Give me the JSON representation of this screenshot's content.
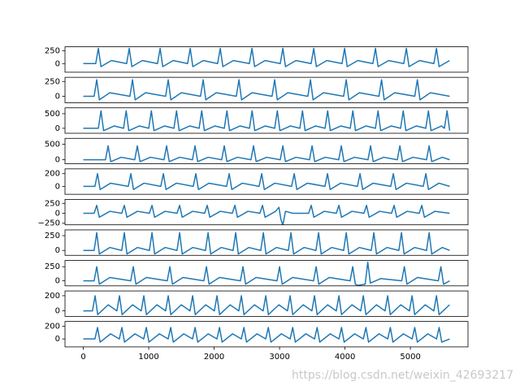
{
  "chart_data": [
    {
      "type": "line",
      "color": "#1f77b4",
      "xlim": [
        -280,
        5880
      ],
      "ylim": [
        -170,
        330
      ],
      "yticks": [
        0,
        250
      ],
      "x": [
        0,
        190,
        230,
        270,
        430,
        662,
        702,
        742,
        902,
        1134,
        1174,
        1214,
        1374,
        1594,
        1634,
        1674,
        1834,
        2053,
        2093,
        2133,
        2293,
        2538,
        2578,
        2618,
        2778,
        3010,
        3050,
        3090,
        3250,
        3482,
        3522,
        3562,
        3722,
        3954,
        3994,
        4034,
        4194,
        4426,
        4466,
        4506,
        4666,
        4898,
        4938,
        4978,
        5138,
        5358,
        5398,
        5438,
        5598
      ],
      "values": [
        0,
        0,
        300,
        -60,
        60,
        0,
        300,
        -60,
        60,
        0,
        300,
        -60,
        60,
        0,
        300,
        -60,
        60,
        0,
        300,
        -60,
        60,
        0,
        300,
        -60,
        60,
        0,
        300,
        -60,
        60,
        0,
        300,
        -60,
        60,
        0,
        300,
        -60,
        60,
        0,
        300,
        -60,
        60,
        0,
        300,
        -60,
        60,
        0,
        300,
        -60,
        60
      ]
    },
    {
      "type": "line",
      "color": "#1f77b4",
      "xlim": [
        -280,
        5880
      ],
      "ylim": [
        -110,
        320
      ],
      "yticks": [
        0,
        250
      ],
      "x": [
        0,
        165,
        205,
        245,
        405,
        712,
        752,
        792,
        952,
        1258,
        1298,
        1338,
        1498,
        1792,
        1832,
        1872,
        2032,
        2339,
        2379,
        2419,
        2579,
        2885,
        2925,
        2965,
        3125,
        3432,
        3472,
        3512,
        3672,
        3979,
        4019,
        4059,
        4219,
        4519,
        4559,
        4599,
        4759,
        5066,
        5106,
        5146,
        5306,
        5600
      ],
      "values": [
        0,
        0,
        280,
        -60,
        60,
        0,
        280,
        -60,
        60,
        0,
        280,
        -60,
        60,
        0,
        280,
        -60,
        60,
        0,
        280,
        -60,
        60,
        0,
        280,
        -60,
        60,
        0,
        280,
        -60,
        60,
        0,
        280,
        -60,
        60,
        0,
        280,
        -60,
        60,
        0,
        280,
        -60,
        60,
        0
      ]
    },
    {
      "type": "line",
      "color": "#1f77b4",
      "xlim": [
        -280,
        5880
      ],
      "ylim": [
        -170,
        700
      ],
      "yticks": [
        0,
        500
      ],
      "x": [
        0,
        230,
        270,
        310,
        470,
        615,
        655,
        695,
        855,
        1000,
        1040,
        1080,
        1240,
        1385,
        1425,
        1465,
        1625,
        1770,
        1810,
        1850,
        2010,
        2155,
        2195,
        2235,
        2395,
        2540,
        2580,
        2620,
        2780,
        2925,
        2965,
        3005,
        3165,
        3310,
        3350,
        3390,
        3550,
        3695,
        3735,
        3775,
        3935,
        4080,
        4120,
        4160,
        4320,
        4465,
        4505,
        4545,
        4705,
        4850,
        4890,
        4930,
        5090,
        5235,
        5275,
        5315,
        5475,
        5520,
        5560,
        5600
      ],
      "values": [
        0,
        0,
        600,
        -80,
        80,
        0,
        600,
        -80,
        80,
        0,
        600,
        -80,
        80,
        0,
        600,
        -80,
        80,
        0,
        600,
        -80,
        80,
        0,
        600,
        -80,
        80,
        0,
        600,
        -80,
        80,
        0,
        600,
        -80,
        80,
        0,
        600,
        -80,
        80,
        0,
        600,
        -80,
        80,
        0,
        600,
        -80,
        80,
        0,
        600,
        -80,
        80,
        0,
        600,
        -80,
        80,
        0,
        600,
        -80,
        80,
        0,
        600,
        -80
      ]
    },
    {
      "type": "line",
      "color": "#1f77b4",
      "xlim": [
        -280,
        5880
      ],
      "ylim": [
        -130,
        690
      ],
      "yticks": [
        0,
        500
      ],
      "x": [
        0,
        339,
        379,
        419,
        579,
        786,
        826,
        866,
        1026,
        1233,
        1273,
        1313,
        1473,
        1668,
        1708,
        1748,
        1908,
        2115,
        2155,
        2195,
        2355,
        2562,
        2602,
        2642,
        2802,
        3010,
        3050,
        3090,
        3250,
        3457,
        3497,
        3537,
        3697,
        3904,
        3944,
        3984,
        4144,
        4351,
        4391,
        4431,
        4591,
        4799,
        4839,
        4879,
        5039,
        5246,
        5286,
        5326,
        5486,
        5600
      ],
      "values": [
        0,
        0,
        450,
        -60,
        80,
        0,
        450,
        -60,
        80,
        0,
        450,
        -60,
        80,
        0,
        450,
        -60,
        80,
        0,
        450,
        -60,
        80,
        0,
        450,
        -60,
        80,
        0,
        450,
        -60,
        80,
        0,
        450,
        -60,
        80,
        0,
        450,
        -60,
        80,
        0,
        450,
        -60,
        80,
        0,
        450,
        -60,
        80,
        0,
        450,
        -60,
        80,
        0
      ]
    },
    {
      "type": "line",
      "color": "#1f77b4",
      "xlim": [
        -280,
        5880
      ],
      "ylim": [
        -125,
        275
      ],
      "yticks": [
        0,
        200
      ],
      "x": [
        0,
        177,
        217,
        257,
        417,
        687,
        727,
        767,
        927,
        1184,
        1224,
        1264,
        1424,
        1680,
        1720,
        1760,
        1920,
        2190,
        2230,
        2270,
        2430,
        2687,
        2727,
        2767,
        2927,
        3184,
        3224,
        3264,
        3424,
        3693,
        3733,
        3773,
        3933,
        4190,
        4230,
        4270,
        4430,
        4699,
        4739,
        4779,
        4939,
        5196,
        5236,
        5276,
        5436,
        5600
      ],
      "values": [
        0,
        0,
        200,
        -50,
        50,
        0,
        200,
        -50,
        50,
        0,
        200,
        -50,
        50,
        0,
        200,
        -50,
        50,
        0,
        200,
        -50,
        50,
        0,
        200,
        -50,
        50,
        0,
        200,
        -50,
        50,
        0,
        200,
        -50,
        50,
        0,
        200,
        -50,
        50,
        0,
        200,
        -50,
        50,
        0,
        200,
        -50,
        50,
        0
      ]
    },
    {
      "type": "line",
      "color": "#1f77b4",
      "xlim": [
        -280,
        5880
      ],
      "ylim": [
        -290,
        350
      ],
      "yticks": [
        {
          "value": -250,
          "label": "−250"
        },
        0,
        250
      ],
      "x": [
        0,
        165,
        205,
        245,
        405,
        587,
        627,
        667,
        827,
        1010,
        1050,
        1090,
        1250,
        1432,
        1472,
        1512,
        1672,
        1854,
        1894,
        1934,
        2094,
        2277,
        2317,
        2357,
        2517,
        2699,
        2739,
        2779,
        2939,
        2990,
        3020,
        3050,
        3090,
        3200,
        3444,
        3484,
        3524,
        3684,
        3867,
        3907,
        3947,
        4107,
        4289,
        4329,
        4369,
        4529,
        4711,
        4751,
        4791,
        4951,
        5134,
        5174,
        5214,
        5374,
        5600
      ],
      "values": [
        0,
        0,
        200,
        -100,
        50,
        0,
        200,
        -100,
        50,
        0,
        200,
        -100,
        50,
        0,
        200,
        -100,
        50,
        0,
        200,
        -100,
        50,
        0,
        200,
        -100,
        50,
        0,
        200,
        -100,
        50,
        150,
        -150,
        -300,
        50,
        0,
        0,
        200,
        -100,
        50,
        0,
        200,
        -100,
        50,
        0,
        200,
        -100,
        50,
        0,
        200,
        -100,
        50,
        0,
        200,
        -100,
        50,
        0
      ]
    },
    {
      "type": "line",
      "color": "#1f77b4",
      "xlim": [
        -280,
        5880
      ],
      "ylim": [
        -83,
        347
      ],
      "yticks": [
        0,
        250
      ],
      "x": [
        0,
        165,
        205,
        245,
        405,
        587,
        627,
        667,
        827,
        1010,
        1050,
        1090,
        1250,
        1432,
        1472,
        1512,
        1672,
        1867,
        1907,
        1947,
        2107,
        2289,
        2329,
        2369,
        2529,
        2712,
        2752,
        2792,
        2952,
        3134,
        3174,
        3214,
        3374,
        3556,
        3596,
        3636,
        3796,
        3979,
        4019,
        4059,
        4219,
        4401,
        4441,
        4481,
        4641,
        4823,
        4863,
        4903,
        5063,
        5246,
        5286,
        5326,
        5486,
        5600
      ],
      "values": [
        0,
        0,
        300,
        -60,
        50,
        0,
        300,
        -60,
        50,
        0,
        300,
        -60,
        50,
        0,
        300,
        -60,
        50,
        0,
        300,
        -60,
        50,
        0,
        300,
        -60,
        50,
        0,
        300,
        -60,
        50,
        0,
        300,
        -60,
        50,
        0,
        300,
        -60,
        50,
        0,
        300,
        -60,
        50,
        0,
        300,
        -60,
        50,
        0,
        300,
        -60,
        50,
        0,
        300,
        -60,
        50,
        0
      ]
    },
    {
      "type": "line",
      "color": "#1f77b4",
      "xlim": [
        -280,
        5880
      ],
      "ylim": [
        -89,
        361
      ],
      "yticks": [
        0,
        250
      ],
      "x": [
        0,
        165,
        205,
        245,
        405,
        724,
        764,
        804,
        964,
        1283,
        1323,
        1363,
        1523,
        1842,
        1882,
        1922,
        2082,
        2401,
        2441,
        2481,
        2641,
        2960,
        3000,
        3040,
        3200,
        3519,
        3559,
        3599,
        3759,
        4078,
        4118,
        4158,
        4200,
        4308,
        4348,
        4388,
        4548,
        4867,
        4907,
        4947,
        5107,
        5426,
        5466,
        5506,
        5600
      ],
      "values": [
        0,
        0,
        250,
        -60,
        60,
        0,
        250,
        -60,
        60,
        0,
        250,
        -60,
        60,
        0,
        250,
        -60,
        60,
        0,
        250,
        -60,
        60,
        0,
        250,
        -60,
        60,
        0,
        250,
        -60,
        60,
        0,
        250,
        -60,
        -80,
        -60,
        330,
        -40,
        40,
        0,
        250,
        -60,
        60,
        0,
        250,
        -60,
        0
      ]
    },
    {
      "type": "line",
      "color": "#1f77b4",
      "xlim": [
        -280,
        5880
      ],
      "ylim": [
        -73,
        263
      ],
      "yticks": [
        0,
        200
      ],
      "x": [
        0,
        140,
        180,
        220,
        380,
        513,
        553,
        593,
        753,
        885,
        925,
        965,
        1125,
        1258,
        1298,
        1338,
        1498,
        1631,
        1671,
        1711,
        1871,
        2003,
        2043,
        2083,
        2243,
        2376,
        2416,
        2456,
        2616,
        2749,
        2789,
        2829,
        2989,
        3121,
        3161,
        3201,
        3361,
        3494,
        3534,
        3574,
        3734,
        3867,
        3907,
        3947,
        4107,
        4240,
        4280,
        4320,
        4480,
        4612,
        4652,
        4692,
        4852,
        4985,
        5025,
        5065,
        5225,
        5358,
        5398,
        5438,
        5598
      ],
      "values": [
        0,
        0,
        200,
        -50,
        80,
        0,
        200,
        -50,
        80,
        0,
        200,
        -50,
        80,
        0,
        200,
        -50,
        80,
        0,
        200,
        -50,
        80,
        0,
        200,
        -50,
        80,
        0,
        200,
        -50,
        80,
        0,
        200,
        -50,
        80,
        0,
        200,
        -50,
        80,
        0,
        200,
        -50,
        80,
        0,
        200,
        -50,
        80,
        0,
        200,
        -50,
        80,
        0,
        200,
        -50,
        80,
        0,
        200,
        -50,
        80,
        0,
        200,
        -50,
        80
      ]
    },
    {
      "type": "line",
      "color": "#1f77b4",
      "xlim": [
        -280,
        5880
      ],
      "ylim": [
        -125,
        275
      ],
      "yticks": [
        0,
        200
      ],
      "xticks": [
        0,
        1000,
        2000,
        3000,
        4000,
        5000
      ],
      "x": [
        0,
        177,
        217,
        257,
        417,
        550,
        590,
        630,
        790,
        923,
        963,
        1003,
        1163,
        1296,
        1336,
        1376,
        1536,
        1669,
        1709,
        1749,
        1909,
        2042,
        2082,
        2122,
        2282,
        2415,
        2455,
        2495,
        2655,
        2788,
        2828,
        2868,
        3028,
        3161,
        3201,
        3241,
        3401,
        3534,
        3574,
        3614,
        3774,
        3907,
        3947,
        3987,
        4147,
        4280,
        4320,
        4360,
        4520,
        4653,
        4693,
        4733,
        4893,
        5026,
        5066,
        5106,
        5266,
        5399,
        5439,
        5479,
        5600
      ],
      "values": [
        0,
        0,
        180,
        -50,
        80,
        0,
        180,
        -50,
        80,
        0,
        180,
        -50,
        80,
        0,
        180,
        -50,
        80,
        0,
        180,
        -50,
        80,
        0,
        180,
        -50,
        80,
        0,
        180,
        -50,
        80,
        0,
        180,
        -50,
        80,
        0,
        180,
        -50,
        80,
        0,
        180,
        -50,
        80,
        0,
        180,
        -50,
        80,
        0,
        180,
        -50,
        80,
        0,
        180,
        -50,
        80,
        0,
        180,
        -50,
        80,
        0,
        180,
        -50,
        0
      ]
    }
  ],
  "watermark": "https://blog.csdn.net/weixin_42693217"
}
